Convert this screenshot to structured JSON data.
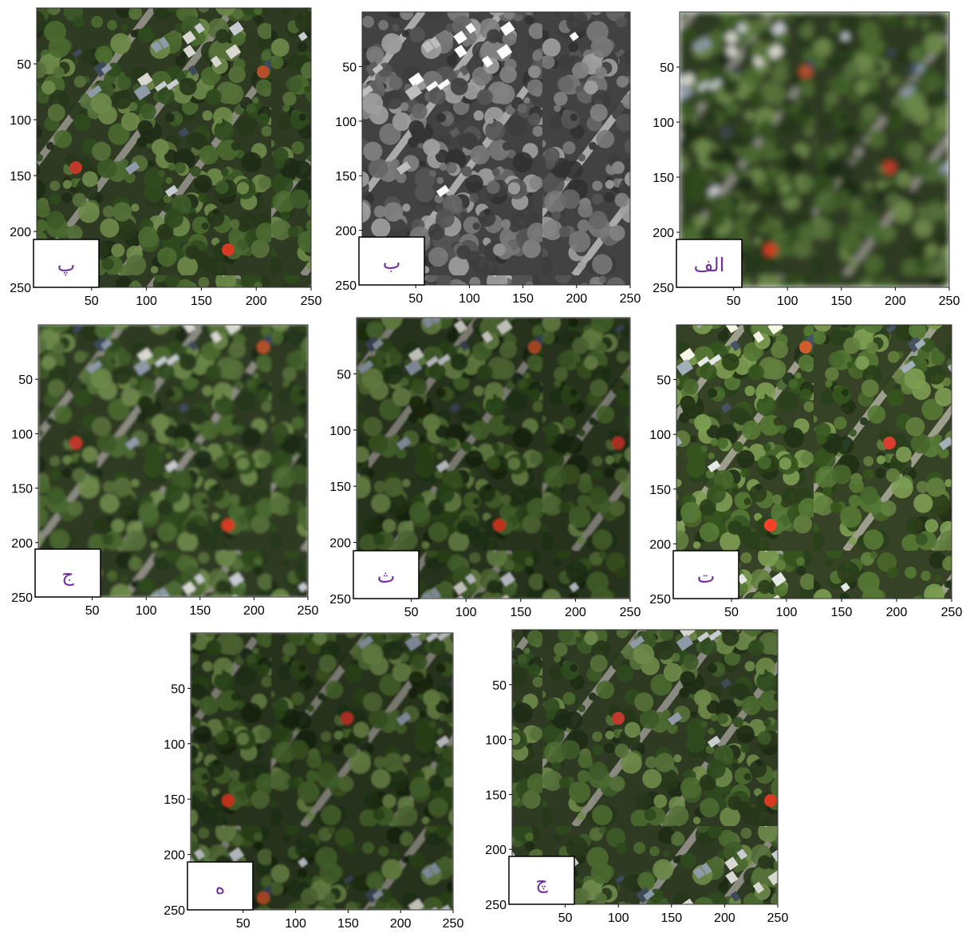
{
  "xlim": [
    0,
    250
  ],
  "ylim": [
    0,
    250
  ],
  "xticks": [
    50,
    100,
    150,
    200,
    250
  ],
  "yticks": [
    50,
    100,
    150,
    200,
    250
  ],
  "panels": [
    {
      "label": "پ",
      "style": "sharp"
    },
    {
      "label": "ب",
      "style": "gray"
    },
    {
      "label": "الف",
      "style": "blur"
    },
    {
      "label": "ج",
      "style": "soft"
    },
    {
      "label": "ث",
      "style": "dark"
    },
    {
      "label": "ت",
      "style": "light"
    },
    {
      "label": "ه",
      "style": "dark"
    },
    {
      "label": "چ",
      "style": "sharp"
    }
  ]
}
